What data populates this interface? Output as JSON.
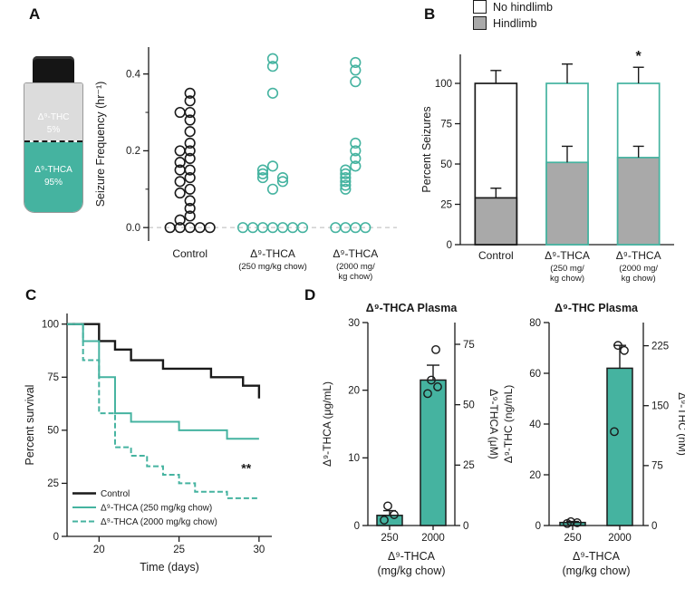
{
  "colors": {
    "teal": "#45B3A0",
    "gray": "#A9A9A9",
    "black": "#1A1A1A"
  },
  "panels": {
    "a": "A",
    "b": "B",
    "c": "C",
    "d": "D"
  },
  "vial": {
    "top_line1": "Δ⁹-THC",
    "top_line2": "5%",
    "bottom_line1": "Δ⁹-THCA",
    "bottom_line2": "95%"
  },
  "chart_data": [
    {
      "id": "seizure-frequency-scatter",
      "type": "scatter",
      "ylabel": "Seizure Frequency (hr⁻¹)",
      "ylim": [
        -0.035,
        0.47
      ],
      "yticks": [
        0,
        0.2,
        0.4
      ],
      "ytick_labels": [
        "0.0",
        "0.2",
        "0.4"
      ],
      "yticks_minor": [
        0.1,
        0.3
      ],
      "zero_line": true,
      "categories": [
        [
          "Control"
        ],
        [
          "Δ⁹-THCA",
          "(250 mg/kg chow)"
        ],
        [
          "Δ⁹-THCA",
          "(2000 mg/",
          "kg chow)"
        ]
      ],
      "series": [
        {
          "name": "Control",
          "color": "#1A1A1A",
          "values": [
            0.35,
            0.33,
            0.3,
            0.3,
            0.28,
            0.25,
            0.22,
            0.2,
            0.2,
            0.18,
            0.17,
            0.15,
            0.15,
            0.13,
            0.12,
            0.1,
            0.09,
            0.07,
            0.05,
            0.03,
            0.02,
            0,
            0,
            0,
            0,
            0
          ]
        },
        {
          "name": "Δ⁹-THCA (250 mg/kg chow)",
          "color": "#45B3A0",
          "values": [
            0.44,
            0.42,
            0.35,
            0.16,
            0.15,
            0.14,
            0.13,
            0.13,
            0.12,
            0.1,
            0,
            0,
            0,
            0,
            0,
            0,
            0
          ]
        },
        {
          "name": "Δ⁹-THCA (2000 mg/kg chow)",
          "color": "#45B3A0",
          "values": [
            0.43,
            0.41,
            0.38,
            0.22,
            0.2,
            0.18,
            0.16,
            0.15,
            0.14,
            0.13,
            0.12,
            0.11,
            0.1,
            0,
            0,
            0,
            0
          ]
        }
      ]
    },
    {
      "id": "percent-seizures-stacked",
      "type": "stacked_bar",
      "ylabel": "Percent Seizures",
      "ylim": [
        0,
        118
      ],
      "yticks": [
        0,
        25,
        50,
        75,
        100
      ],
      "legend": [
        {
          "label": "No hindlimb",
          "fill": "#FFFFFF"
        },
        {
          "label": "Hindlimb",
          "fill": "#A9A9A9"
        }
      ],
      "categories": [
        [
          "Control"
        ],
        [
          "Δ⁹-THCA",
          "(250 mg/",
          "kg chow)"
        ],
        [
          "Δ⁹-THCA",
          "(2000 mg/",
          "kg chow)"
        ]
      ],
      "bars": [
        {
          "outline": "#1A1A1A",
          "hindlimb": 29,
          "hindlimb_err": 6,
          "total": 100,
          "total_err": 8,
          "sig": ""
        },
        {
          "outline": "#45B3A0",
          "hindlimb": 51,
          "hindlimb_err": 10,
          "total": 100,
          "total_err": 12,
          "sig": ""
        },
        {
          "outline": "#45B3A0",
          "hindlimb": 54,
          "hindlimb_err": 7,
          "total": 100,
          "total_err": 10,
          "sig": "*"
        }
      ]
    },
    {
      "id": "survival-curves",
      "type": "survival",
      "ylabel": "Percent survival",
      "xlabel": "Time (days)",
      "xlim": [
        18,
        30.8
      ],
      "ylim": [
        0,
        105
      ],
      "xticks": [
        20,
        25,
        30
      ],
      "yticks": [
        0,
        25,
        50,
        75,
        100
      ],
      "annotation": {
        "text": "**",
        "x": 29.2,
        "y": 30
      },
      "series": [
        {
          "name": "Control",
          "color": "#1A1A1A",
          "dash": "",
          "width": 2.4,
          "x": [
            18,
            20,
            21,
            22,
            24,
            27,
            29,
            30
          ],
          "y": [
            100,
            92,
            88,
            83,
            79,
            75,
            71,
            65
          ]
        },
        {
          "name": "Δ⁹-THCA (250 mg/kg chow)",
          "color": "#45B3A0",
          "dash": "",
          "width": 2,
          "x": [
            18,
            19,
            20,
            21,
            22,
            25,
            28,
            30
          ],
          "y": [
            100,
            92,
            75,
            58,
            54,
            50,
            46,
            46
          ]
        },
        {
          "name": "Δ⁹-THCA (2000 mg/kg chow)",
          "color": "#45B3A0",
          "dash": "6,3",
          "width": 2,
          "x": [
            18,
            19,
            20,
            21,
            22,
            23,
            24,
            25,
            26,
            28,
            30
          ],
          "y": [
            100,
            83,
            58,
            42,
            38,
            33,
            29,
            25,
            21,
            18,
            18
          ]
        }
      ]
    },
    {
      "id": "thca-plasma-bar",
      "type": "bar_scatter",
      "title": "Δ⁹-THCA Plasma",
      "ylabel_left": "Δ⁹-THCA (μg/mL)",
      "ylabel_right": "Δ⁹-THCA (μM)",
      "ylim_left": [
        0,
        30
      ],
      "yticks_left": [
        0,
        10,
        20,
        30
      ],
      "ylim_right": [
        0,
        84
      ],
      "yticks_right": [
        0,
        25,
        50,
        75
      ],
      "xlabel_line1": "Δ⁹-THCA",
      "xlabel_line2": "(mg/kg chow)",
      "categories": [
        "250",
        "2000"
      ],
      "bar_fill": "#45B3A0",
      "bars": [
        {
          "mean": 1.5,
          "err": 0.7,
          "points": [
            0.8,
            1.6,
            2.9
          ]
        },
        {
          "mean": 21.5,
          "err": 2.2,
          "points": [
            19.5,
            20.5,
            21.5,
            26
          ]
        }
      ]
    },
    {
      "id": "thc-plasma-bar",
      "type": "bar_scatter",
      "title": "Δ⁹-THC Plasma",
      "ylabel_left": "Δ⁹-THC (ng/mL)",
      "ylabel_right": "Δ⁹-THC (nM)",
      "ylim_left": [
        0,
        80
      ],
      "yticks_left": [
        0,
        20,
        40,
        60,
        80
      ],
      "ylim_right": [
        0,
        254
      ],
      "yticks_right": [
        0,
        75,
        150,
        225
      ],
      "xlabel_line1": "Δ⁹-THCA",
      "xlabel_line2": "(mg/kg chow)",
      "categories": [
        "250",
        "2000"
      ],
      "bar_fill": "#45B3A0",
      "bars": [
        {
          "mean": 1.2,
          "err": 0.4,
          "points": [
            0.8,
            1.1,
            1.5
          ]
        },
        {
          "mean": 62,
          "err": 9,
          "points": [
            37,
            69,
            71
          ]
        }
      ]
    }
  ]
}
